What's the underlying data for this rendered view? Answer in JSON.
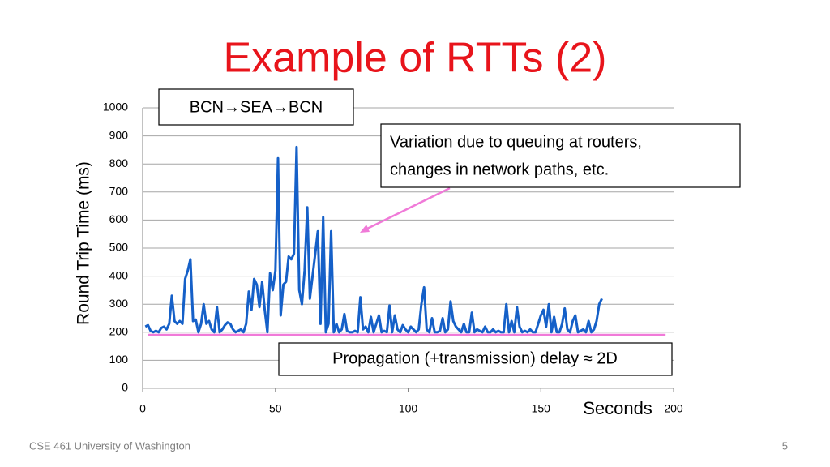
{
  "chart_data": {
    "type": "line",
    "title": "Example of RTTs (2)",
    "xlabel": "Seconds",
    "ylabel": "Round Trip Time (ms)",
    "xlim": [
      0,
      200
    ],
    "xticks": [
      0,
      50,
      100,
      150,
      200
    ],
    "ylim": [
      0,
      1000
    ],
    "yticks": [
      0,
      100,
      200,
      300,
      400,
      500,
      600,
      700,
      800,
      900,
      1000
    ],
    "grid": true,
    "x": [
      1,
      2,
      3,
      4,
      5,
      6,
      7,
      8,
      9,
      10,
      11,
      12,
      13,
      14,
      15,
      16,
      17,
      18,
      19,
      20,
      21,
      22,
      23,
      24,
      25,
      26,
      27,
      28,
      29,
      30,
      31,
      32,
      33,
      34,
      35,
      36,
      37,
      38,
      39,
      40,
      41,
      42,
      43,
      44,
      45,
      46,
      47,
      48,
      49,
      50,
      51,
      52,
      53,
      54,
      55,
      56,
      57,
      58,
      59,
      60,
      61,
      62,
      63,
      64,
      65,
      66,
      67,
      68,
      69,
      70,
      71,
      72,
      73,
      74,
      75,
      76,
      77,
      78,
      79,
      80,
      81,
      82,
      83,
      84,
      85,
      86,
      87,
      88,
      89,
      90,
      91,
      92,
      93,
      94,
      95,
      96,
      97,
      98,
      99,
      100,
      101,
      102,
      103,
      104,
      105,
      106,
      107,
      108,
      109,
      110,
      111,
      112,
      113,
      114,
      115,
      116,
      117,
      118,
      119,
      120,
      121,
      122,
      123,
      124,
      125,
      126,
      127,
      128,
      129,
      130,
      131,
      132,
      133,
      134,
      135,
      136,
      137,
      138,
      139,
      140,
      141,
      142,
      143,
      144,
      145,
      146,
      147,
      148,
      149,
      150,
      151,
      152,
      153,
      154,
      155,
      156,
      157,
      158,
      159,
      160,
      161,
      162,
      163,
      164,
      165,
      166,
      167,
      168,
      169,
      170,
      171,
      172,
      173
    ],
    "series": [
      {
        "color": "#1560c8",
        "values": [
          220,
          225,
          205,
          200,
          205,
          200,
          215,
          220,
          210,
          230,
          330,
          240,
          230,
          240,
          230,
          390,
          420,
          460,
          240,
          245,
          200,
          230,
          300,
          230,
          240,
          210,
          200,
          290,
          200,
          210,
          225,
          235,
          230,
          210,
          200,
          205,
          210,
          200,
          230,
          345,
          280,
          390,
          370,
          290,
          380,
          280,
          200,
          410,
          350,
          420,
          820,
          260,
          370,
          380,
          470,
          460,
          480,
          860,
          350,
          300,
          420,
          645,
          320,
          400,
          480,
          560,
          230,
          610,
          200,
          230,
          560,
          200,
          230,
          200,
          210,
          265,
          205,
          200,
          200,
          205,
          200,
          325,
          210,
          220,
          200,
          255,
          200,
          230,
          260,
          200,
          205,
          200,
          295,
          200,
          260,
          210,
          200,
          225,
          210,
          200,
          220,
          210,
          200,
          210,
          300,
          360,
          210,
          200,
          250,
          200,
          200,
          205,
          250,
          200,
          210,
          310,
          240,
          220,
          210,
          200,
          230,
          200,
          200,
          270,
          200,
          210,
          205,
          200,
          220,
          200,
          200,
          210,
          200,
          205,
          200,
          200,
          300,
          200,
          240,
          200,
          290,
          220,
          200,
          205,
          200,
          210,
          200,
          200,
          230,
          260,
          280,
          220,
          300,
          200,
          255,
          200,
          200,
          230,
          285,
          210,
          200,
          240,
          260,
          200,
          205,
          210,
          200,
          240,
          200,
          210,
          240,
          300,
          320
        ]
      }
    ],
    "reference_line": {
      "y": 190,
      "x": [
        2,
        197
      ],
      "color": "#f07ad8"
    },
    "annotations": {
      "route": "BCN→SEA→BCN",
      "variation": [
        "Variation due to queuing at routers,",
        "changes in network paths, etc."
      ],
      "propagation": "Propagation (+transmission) delay ≈ 2D"
    }
  },
  "footer": {
    "left": "CSE 461 University of Washington",
    "page": "5"
  }
}
